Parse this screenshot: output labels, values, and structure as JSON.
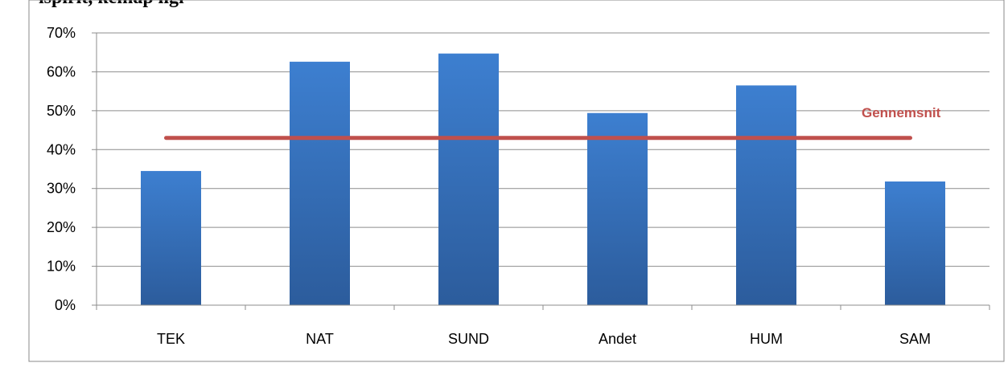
{
  "title_fragment": "ispirit, kemap ligi",
  "chart_data": {
    "type": "bar",
    "categories": [
      "TEK",
      "NAT",
      "SUND",
      "Andet",
      "HUM",
      "SAM"
    ],
    "values": [
      34.5,
      62.6,
      64.7,
      49.4,
      56.5,
      31.8
    ],
    "yticks": [
      "0%",
      "10%",
      "20%",
      "30%",
      "40%",
      "50%",
      "60%",
      "70%"
    ],
    "ylim": [
      0,
      70
    ],
    "grid": true,
    "bar_color": "#3a76c4",
    "average": {
      "label": "Gennemsnit",
      "value": 43,
      "color": "#c0504d"
    }
  }
}
